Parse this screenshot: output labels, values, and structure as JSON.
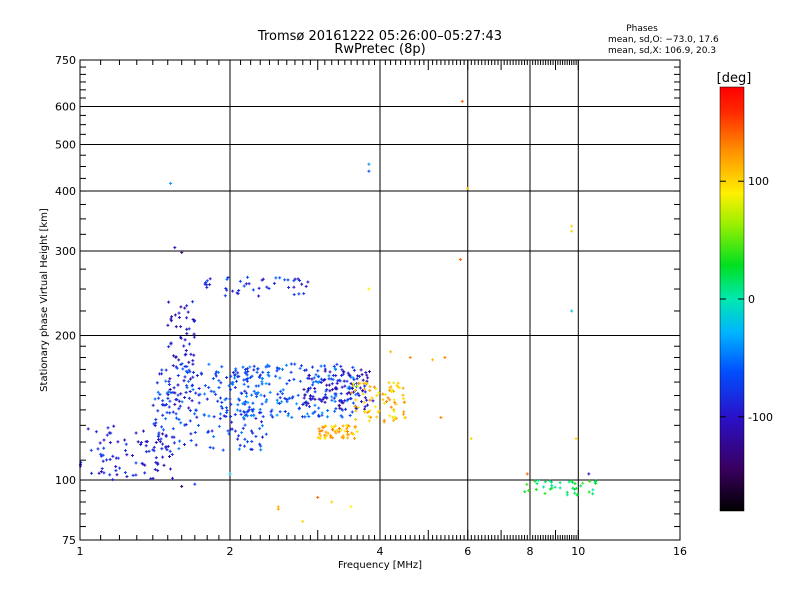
{
  "chart_data": {
    "type": "scatter",
    "title": "Tromsø 20161222 05:26:00–05:27:43",
    "subtitle": "RwPretec (8p)",
    "xlabel": "Frequency [MHz]",
    "ylabel": "Stationary phase Virtual Height [km]",
    "x_scale": "log",
    "y_scale": "log",
    "xlim": [
      1,
      16
    ],
    "ylim": [
      75,
      750
    ],
    "x_ticks": [
      1,
      2,
      4,
      6,
      8,
      10,
      16
    ],
    "x_tick_labels": [
      "1",
      "2",
      "4",
      "6",
      "8",
      "10",
      "16"
    ],
    "y_ticks": [
      75,
      100,
      200,
      300,
      400,
      500,
      600,
      750
    ],
    "y_tick_labels": [
      "75",
      "100",
      "200",
      "300",
      "400",
      "500",
      "600",
      "750"
    ],
    "grid_x": [
      1,
      2,
      4,
      6,
      8,
      10,
      16
    ],
    "grid_y": [
      100,
      200,
      300,
      400,
      500,
      600
    ],
    "legend": {
      "title": "Phases",
      "line_o": "mean, sd,O: −73.0, 17.6",
      "line_x": "mean, sd,X: 106.9, 20.3"
    },
    "colorbar": {
      "label": "[deg]",
      "range": [
        -180,
        180
      ],
      "ticks": [
        100,
        0,
        -100
      ],
      "tick_labels": [
        "100",
        "0",
        "-100"
      ]
    },
    "clusters": [
      {
        "name": "low-freq trace",
        "x_range": [
          1.0,
          1.55
        ],
        "y_range": [
          100,
          130
        ],
        "phase": -95,
        "count": 90
      },
      {
        "name": "rising branch",
        "x_range": [
          1.5,
          1.7
        ],
        "y_range": [
          140,
          240
        ],
        "phase": -100,
        "count": 70
      },
      {
        "name": "main F trace",
        "x_range": [
          1.4,
          2.4
        ],
        "y_range": [
          115,
          175
        ],
        "phase": -70,
        "count": 220
      },
      {
        "name": "main F trace upper",
        "x_range": [
          2.0,
          3.6
        ],
        "y_range": [
          135,
          175
        ],
        "phase": -60,
        "count": 200
      },
      {
        "name": "blue band",
        "x_range": [
          2.8,
          3.9
        ],
        "y_range": [
          140,
          170
        ],
        "phase": -100,
        "count": 110
      },
      {
        "name": "orange trace",
        "x_range": [
          3.0,
          3.6
        ],
        "y_range": [
          122,
          130
        ],
        "phase": 110,
        "count": 55
      },
      {
        "name": "orange trace upper",
        "x_range": [
          3.5,
          4.5
        ],
        "y_range": [
          132,
          160
        ],
        "phase": 105,
        "count": 80
      },
      {
        "name": "upper echo",
        "x_range": [
          1.7,
          2.9
        ],
        "y_range": [
          240,
          265
        ],
        "phase": -80,
        "count": 45
      },
      {
        "name": "E layer echoes",
        "x_range": [
          7.8,
          11.0
        ],
        "y_range": [
          93,
          100
        ],
        "phase": 20,
        "count": 40
      }
    ],
    "points": [
      {
        "x": 1.52,
        "y": 415,
        "phase": -40
      },
      {
        "x": 1.55,
        "y": 305,
        "phase": -110
      },
      {
        "x": 1.6,
        "y": 298,
        "phase": -140
      },
      {
        "x": 3.8,
        "y": 455,
        "phase": -40
      },
      {
        "x": 3.8,
        "y": 440,
        "phase": -60
      },
      {
        "x": 3.8,
        "y": 250,
        "phase": 90
      },
      {
        "x": 5.85,
        "y": 615,
        "phase": 140
      },
      {
        "x": 5.8,
        "y": 288,
        "phase": 140
      },
      {
        "x": 6.0,
        "y": 405,
        "phase": 110
      },
      {
        "x": 9.7,
        "y": 338,
        "phase": 100
      },
      {
        "x": 9.7,
        "y": 330,
        "phase": 100
      },
      {
        "x": 9.7,
        "y": 225,
        "phase": -20
      },
      {
        "x": 9.9,
        "y": 122,
        "phase": 100
      },
      {
        "x": 1.6,
        "y": 97,
        "phase": -140
      },
      {
        "x": 1.7,
        "y": 98,
        "phase": -80
      },
      {
        "x": 2.5,
        "y": 88,
        "phase": 110
      },
      {
        "x": 2.5,
        "y": 87,
        "phase": 120
      },
      {
        "x": 2.8,
        "y": 82,
        "phase": 100
      },
      {
        "x": 3.0,
        "y": 92,
        "phase": 140
      },
      {
        "x": 3.2,
        "y": 90,
        "phase": 100
      },
      {
        "x": 3.5,
        "y": 88,
        "phase": 90
      },
      {
        "x": 2.0,
        "y": 103,
        "phase": -20
      },
      {
        "x": 4.2,
        "y": 185,
        "phase": 110
      },
      {
        "x": 4.6,
        "y": 180,
        "phase": 130
      },
      {
        "x": 5.1,
        "y": 178,
        "phase": 110
      },
      {
        "x": 5.4,
        "y": 180,
        "phase": 130
      },
      {
        "x": 5.3,
        "y": 135,
        "phase": 130
      },
      {
        "x": 6.1,
        "y": 122,
        "phase": 100
      },
      {
        "x": 10.5,
        "y": 103,
        "phase": -100
      },
      {
        "x": 7.9,
        "y": 103,
        "phase": 140
      }
    ]
  }
}
